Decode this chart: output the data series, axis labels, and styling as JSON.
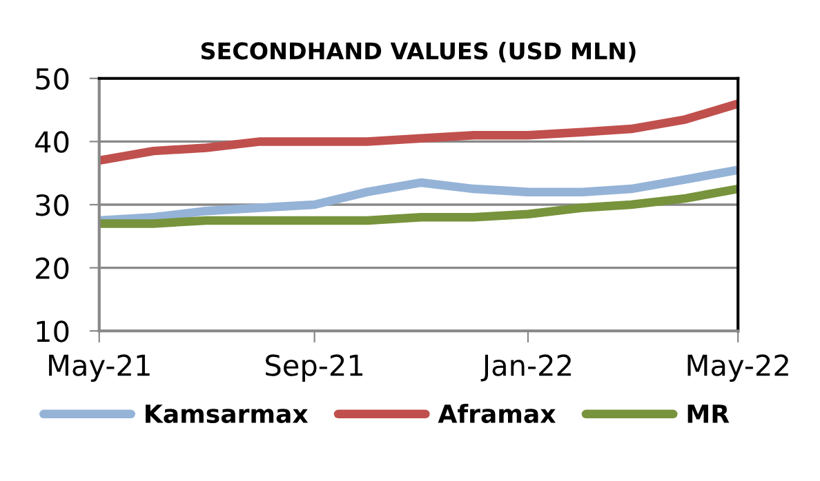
{
  "chart_data": {
    "type": "line",
    "title": "SECONDHAND VALUES (USD MLN)",
    "x": [
      "2021-05-01",
      "2021-06-01",
      "2021-07-01",
      "2021-08-01",
      "2021-09-01",
      "2021-10-01",
      "2021-11-01",
      "2021-12-01",
      "2022-01-01",
      "2022-02-01",
      "2022-03-01",
      "2022-04-01",
      "2022-05-01"
    ],
    "series": [
      {
        "name": "Kamsarmax",
        "color": "#95b3d7",
        "values": [
          27.5,
          28,
          29,
          29.5,
          30,
          32,
          33.5,
          32.5,
          32,
          32,
          32.5,
          34,
          35.5
        ]
      },
      {
        "name": "Aframax",
        "color": "#c0504d",
        "values": [
          37,
          38.5,
          39,
          40,
          40,
          40,
          40.5,
          41,
          41,
          41.5,
          42,
          43.5,
          46
        ]
      },
      {
        "name": "MR",
        "color": "#77933c",
        "values": [
          27,
          27,
          27.5,
          27.5,
          27.5,
          27.5,
          28,
          28,
          28.5,
          29.5,
          30,
          31,
          32.5
        ]
      }
    ],
    "xlim": [
      "2021-05-01",
      "2022-05-01"
    ],
    "xticks": [
      {
        "value": "2021-05-01",
        "label": "May-21"
      },
      {
        "value": "2021-09-01",
        "label": "Sep-21"
      },
      {
        "value": "2022-01-01",
        "label": "Jan-22"
      },
      {
        "value": "2022-05-01",
        "label": "May-22"
      }
    ],
    "ylim": [
      10,
      50
    ],
    "yticks": [
      10,
      20,
      30,
      40,
      50
    ],
    "grid": "y",
    "legend": "bottom",
    "marker": "none",
    "line_style": "solid"
  }
}
